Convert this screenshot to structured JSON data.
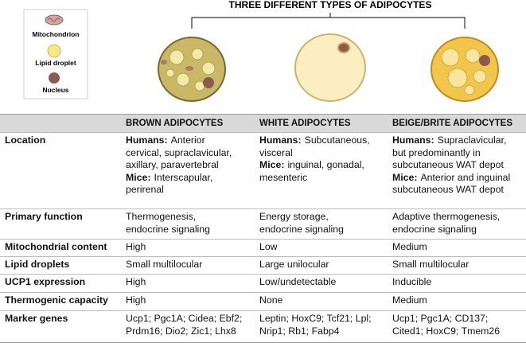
{
  "title": "THREE DIFFERENT TYPES OF ADIPOCYTES",
  "legend": [
    "Mitochondrion",
    "Lipid droplet",
    "Nucleus"
  ],
  "table": {
    "header": [
      "BROWN ADIPOCYTES",
      "WHITE ADIPOCYTES",
      "BEIGE/BRITE ADIPOCYTES"
    ],
    "rows": [
      {
        "label": "Location",
        "cells": [
          [
            {
              "label": "Humans:",
              "text": "Anterior"
            },
            "cervical, supraclavicular,",
            "axillary,  paravertebral",
            {
              "label": "Mice:",
              "text": "Interscapular,"
            },
            "perirenal"
          ],
          [
            {
              "label": "Humans:",
              "text": "Subcutaneous,"
            },
            "visceral",
            {
              "label": "Mice:",
              "text": "inguinal, gonadal,"
            },
            "mesenteric"
          ],
          [
            {
              "label": "Humans:",
              "text": "Supraclavicular,"
            },
            "but predominantly in",
            "subcutaneous WAT depot",
            {
              "label": "Mice:",
              "text": "Anterior and inguinal"
            },
            "subcutaneous WAT depot"
          ]
        ]
      },
      {
        "label": "Primary function",
        "cells": [
          [
            "Thermogenesis,",
            "endocrine signaling"
          ],
          [
            "Energy storage,",
            "endocrine signaling"
          ],
          [
            "Adaptive thermogenesis,",
            "endocrine signaling"
          ]
        ]
      },
      {
        "label": "Mitochondrial content",
        "cells": [
          [
            "High"
          ],
          [
            "Low"
          ],
          [
            "Medium"
          ]
        ]
      },
      {
        "label": "Lipid droplets",
        "cells": [
          [
            "Small multilocular"
          ],
          [
            "Large unilocular"
          ],
          [
            "Small multilocular"
          ]
        ]
      },
      {
        "label": "UCP1 expression",
        "cells": [
          [
            "High"
          ],
          [
            "Low/undetectable"
          ],
          [
            "Inducible"
          ]
        ]
      },
      {
        "label": "Thermogenic capacity",
        "cells": [
          [
            "High"
          ],
          [
            "None"
          ],
          [
            "Medium"
          ]
        ]
      },
      {
        "label": "Marker genes",
        "cells": [
          [
            "Ucp1; Pgc1A; Cidea; Ebf2;",
            "Prdm16;  Dio2; Zic1; Lhx8"
          ],
          [
            "Leptin; HoxC9; Tcf21; Lpl;",
            "Nrip1; Rb1; Fabp4"
          ],
          [
            "Ucp1; Pgc1A; CD137;",
            "Cited1; HoxC9; Tmem26"
          ]
        ]
      }
    ]
  }
}
